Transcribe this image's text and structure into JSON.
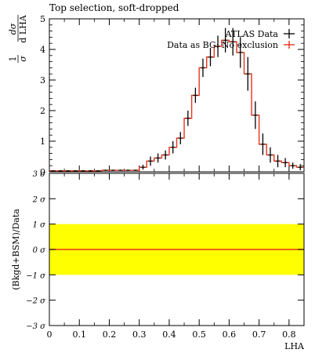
{
  "chart_data": [
    {
      "type": "histogram",
      "panel": "main",
      "title": "Top selection, soft-dropped",
      "ylabel_prefix": "1",
      "ylabel_sigma": "σ",
      "ylabel_num": "dσ",
      "ylabel_den": "d LHA",
      "xlim": [
        0,
        0.85
      ],
      "ylim": [
        0,
        5
      ],
      "yticks": [
        "0",
        "1",
        "2",
        "3",
        "4",
        "5"
      ],
      "legend": [
        "ATLAS Data",
        "Data as BG: No exclusion"
      ],
      "legend_position": "top-right",
      "colors": {
        "data": "#000000",
        "model": "#e8341c"
      },
      "bin_edges": [
        0,
        0.025,
        0.05,
        0.075,
        0.1,
        0.125,
        0.15,
        0.175,
        0.2,
        0.225,
        0.25,
        0.275,
        0.3,
        0.325,
        0.35,
        0.375,
        0.4,
        0.425,
        0.45,
        0.475,
        0.5,
        0.525,
        0.55,
        0.575,
        0.6,
        0.625,
        0.65,
        0.675,
        0.7,
        0.725,
        0.75,
        0.775,
        0.8,
        0.825,
        0.85
      ],
      "series": [
        {
          "name": "ATLAS Data",
          "values": [
            0.03,
            0.03,
            0.03,
            0.03,
            0.03,
            0.03,
            0.03,
            0.05,
            0.05,
            0.05,
            0.05,
            0.05,
            0.15,
            0.35,
            0.45,
            0.55,
            0.8,
            1.1,
            1.75,
            2.5,
            3.4,
            3.75,
            4.1,
            4.3,
            4.25,
            3.9,
            3.2,
            1.85,
            0.9,
            0.55,
            0.35,
            0.3,
            0.2,
            0.15
          ],
          "errors": [
            0.02,
            0.02,
            0.02,
            0.02,
            0.02,
            0.02,
            0.02,
            0.02,
            0.02,
            0.02,
            0.02,
            0.02,
            0.08,
            0.15,
            0.15,
            0.15,
            0.2,
            0.2,
            0.25,
            0.25,
            0.3,
            0.3,
            0.35,
            0.4,
            0.45,
            0.5,
            0.55,
            0.45,
            0.35,
            0.25,
            0.2,
            0.15,
            0.1,
            0.1
          ]
        },
        {
          "name": "Data as BG: No exclusion",
          "values": [
            0.03,
            0.03,
            0.03,
            0.03,
            0.03,
            0.03,
            0.03,
            0.05,
            0.05,
            0.05,
            0.05,
            0.05,
            0.15,
            0.35,
            0.45,
            0.55,
            0.8,
            1.1,
            1.75,
            2.5,
            3.4,
            3.75,
            4.1,
            4.3,
            4.25,
            3.9,
            3.2,
            1.85,
            0.9,
            0.55,
            0.35,
            0.3,
            0.2,
            0.15
          ]
        }
      ]
    },
    {
      "type": "band",
      "panel": "ratio",
      "ylabel": "(Bkgd+BSM)/Data",
      "xlabel": "LHA",
      "xlim": [
        0,
        0.85
      ],
      "ylim": [
        -3,
        3
      ],
      "yticks": [
        "−3 σ",
        "−2 σ",
        "−1 σ",
        "0 σ",
        "1 σ",
        "2 σ",
        "3 σ"
      ],
      "xticks": [
        "0",
        "0.1",
        "0.2",
        "0.3",
        "0.4",
        "0.5",
        "0.6",
        "0.7",
        "0.8"
      ],
      "band": {
        "name": "±1 σ",
        "range": [
          -1,
          1
        ],
        "color": "#ffff00"
      },
      "line": {
        "value": 0,
        "color": "#e8341c"
      }
    }
  ]
}
